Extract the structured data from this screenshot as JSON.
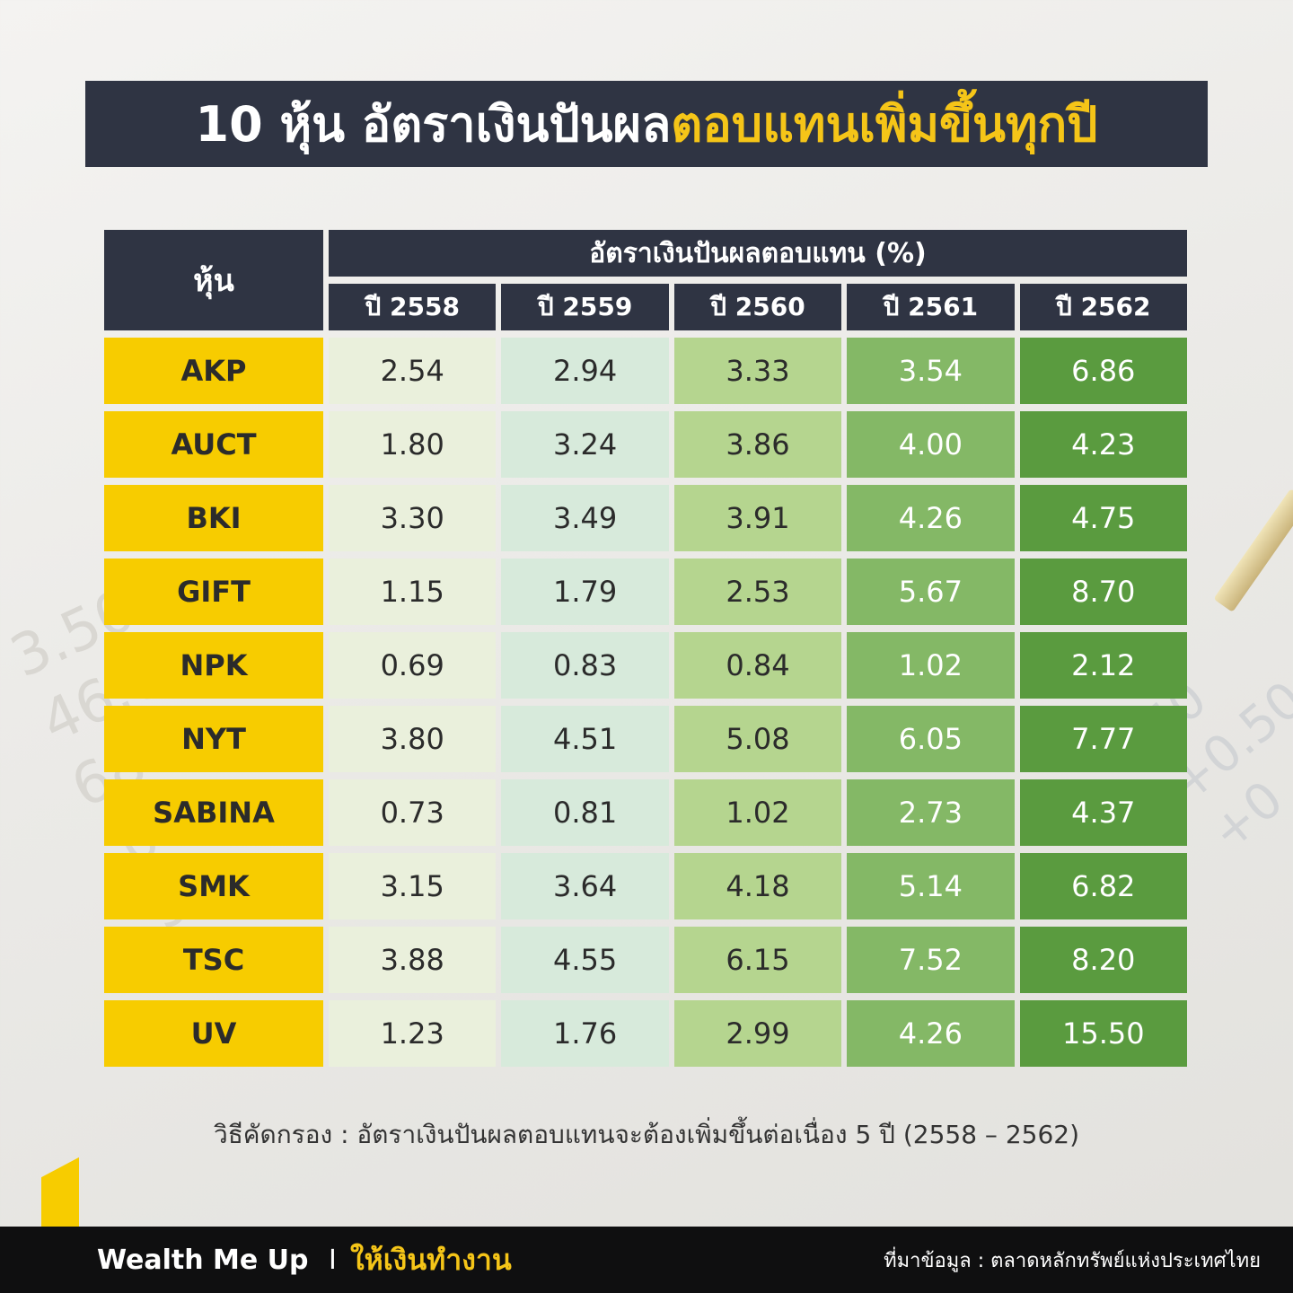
{
  "title": {
    "part1": "10 หุ้น อัตราเงินปันผล",
    "part2": "ตอบแทนเพิ่มขึ้นทุกปี"
  },
  "chart_data": {
    "type": "table",
    "stock_header": "หุ้น",
    "group_header": "อัตราเงินปันผลตอบแทน (%)",
    "columns": [
      "ปี 2558",
      "ปี 2559",
      "ปี 2560",
      "ปี 2561",
      "ปี 2562"
    ],
    "rows": [
      {
        "stock": "AKP",
        "values": [
          "2.54",
          "2.94",
          "3.33",
          "3.54",
          "6.86"
        ]
      },
      {
        "stock": "AUCT",
        "values": [
          "1.80",
          "3.24",
          "3.86",
          "4.00",
          "4.23"
        ]
      },
      {
        "stock": "BKI",
        "values": [
          "3.30",
          "3.49",
          "3.91",
          "4.26",
          "4.75"
        ]
      },
      {
        "stock": "GIFT",
        "values": [
          "1.15",
          "1.79",
          "2.53",
          "5.67",
          "8.70"
        ]
      },
      {
        "stock": "NPK",
        "values": [
          "0.69",
          "0.83",
          "0.84",
          "1.02",
          "2.12"
        ]
      },
      {
        "stock": "NYT",
        "values": [
          "3.80",
          "4.51",
          "5.08",
          "6.05",
          "7.77"
        ]
      },
      {
        "stock": "SABINA",
        "values": [
          "0.73",
          "0.81",
          "1.02",
          "2.73",
          "4.37"
        ]
      },
      {
        "stock": "SMK",
        "values": [
          "3.15",
          "3.64",
          "4.18",
          "5.14",
          "6.82"
        ]
      },
      {
        "stock": "TSC",
        "values": [
          "3.88",
          "4.55",
          "6.15",
          "7.52",
          "8.20"
        ]
      },
      {
        "stock": "UV",
        "values": [
          "1.23",
          "1.76",
          "2.99",
          "4.26",
          "15.50"
        ]
      }
    ],
    "column_colors": [
      "#eaf0dc",
      "#d7eadb",
      "#b5d58f",
      "#84b866",
      "#5a9b3f"
    ]
  },
  "note": "วิธีคัดกรอง : อัตราเงินปันผลตอบแทนจะต้องเพิ่มขึ้นต่อเนื่อง 5 ปี (2558 – 2562)",
  "footer": {
    "brand": "Wealth Me Up",
    "separator": "I",
    "tagline": "ให้เงินทำงาน",
    "source": "ที่มาข้อมูล : ตลาดหลักทรัพย์แห่งประเทศไทย"
  }
}
